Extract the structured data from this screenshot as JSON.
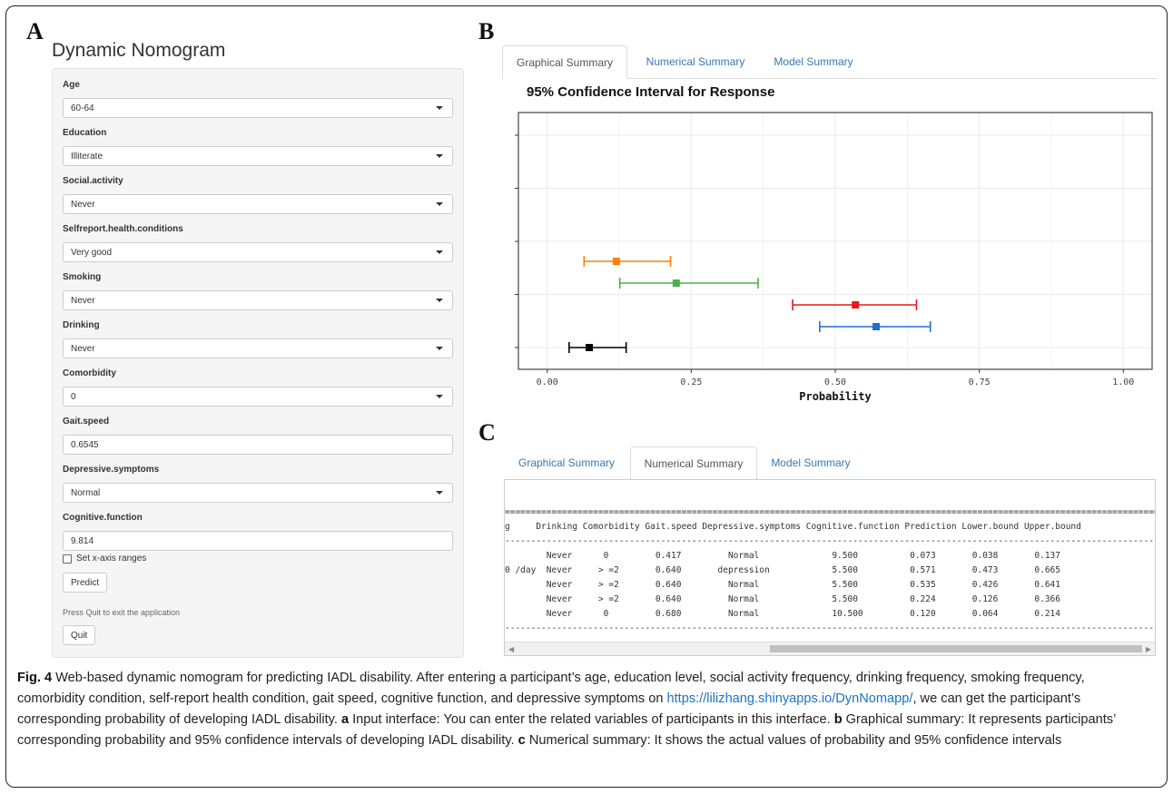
{
  "panel_labels": {
    "a": "A",
    "b": "B",
    "c": "C"
  },
  "app": {
    "title": "Dynamic Nomogram",
    "fields": [
      {
        "label": "Age",
        "value": "60-64",
        "type": "select"
      },
      {
        "label": "Education",
        "value": "Illiterate",
        "type": "select"
      },
      {
        "label": "Social.activity",
        "value": "Never",
        "type": "select"
      },
      {
        "label": "Selfreport.health.conditions",
        "value": "Very good",
        "type": "select"
      },
      {
        "label": "Smoking",
        "value": "Never",
        "type": "select"
      },
      {
        "label": "Drinking",
        "value": "Never",
        "type": "select"
      },
      {
        "label": "Comorbidity",
        "value": "0",
        "type": "select"
      },
      {
        "label": "Gait.speed",
        "value": "0.6545",
        "type": "text"
      },
      {
        "label": "Depressive.symptoms",
        "value": "Normal",
        "type": "select"
      },
      {
        "label": "Cognitive.function",
        "value": "9.814",
        "type": "text"
      }
    ],
    "checkbox_label": "Set x-axis ranges",
    "predict_label": "Predict",
    "quit_note": "Press Quit to exit the application",
    "quit_label": "Quit"
  },
  "tabs": [
    "Graphical Summary",
    "Numerical Summary",
    "Model Summary"
  ],
  "chart_data": {
    "type": "scatter",
    "title": "95% Confidence Interval for Response",
    "xlabel": "Probability",
    "xlim": [
      -0.05,
      1.05
    ],
    "xticks": [
      "0.00",
      "0.25",
      "0.50",
      "0.75",
      "1.00"
    ],
    "grid": true,
    "series": [
      {
        "color": "#ff7f00",
        "estimate": 0.12,
        "lower": 0.064,
        "upper": 0.214
      },
      {
        "color": "#4daf4a",
        "estimate": 0.224,
        "lower": 0.126,
        "upper": 0.366
      },
      {
        "color": "#e41a1c",
        "estimate": 0.535,
        "lower": 0.426,
        "upper": 0.641
      },
      {
        "color": "#1f6fd0",
        "estimate": 0.571,
        "lower": 0.473,
        "upper": 0.665
      },
      {
        "color": "#000000",
        "estimate": 0.073,
        "lower": 0.038,
        "upper": 0.137
      }
    ]
  },
  "numerical": {
    "rule": "==============================================================================================================================",
    "header": "g     Drinking Comorbidity Gait.speed Depressive.symptoms Cognitive.function Prediction Lower.bound Upper.bound",
    "dash": "------------------------------------------------------------------------------------------------------------------------------",
    "rows": [
      "        Never      0         0.417         Normal              9.500          0.073       0.038       0.137",
      "0 /day  Never     > =2       0.640       depression            5.500          0.571       0.473       0.665",
      "        Never     > =2       0.640         Normal              5.500          0.535       0.426       0.641",
      "        Never     > =2       0.640         Normal              5.500          0.224       0.126       0.366",
      "        Never      0         0.680         Normal              10.500         0.120       0.064       0.214"
    ]
  },
  "caption": {
    "fig": "Fig. 4",
    "text1": " Web-based dynamic nomogram for predicting IADL disability. After entering a participant’s age, education level, social activity frequency, drinking frequency, smoking frequency, comorbidity condition, self-report health condition, gait speed, cognitive function, and depressive symptoms on ",
    "link": "https://lilizhang.shinyapps.io/DynNomapp/",
    "text2": ", we can get the participant’s corresponding probability of developing IADL disability. ",
    "a": "a",
    "a_text": " Input interface: You can enter the related variables of participants in this interface. ",
    "b": "b",
    "b_text": " Graphical summary: It represents participants’ corresponding probability and 95% confidence intervals of developing IADL disability. ",
    "c": "c",
    "c_text": " Numerical summary: It shows the actual values of probability and 95% confidence intervals"
  }
}
